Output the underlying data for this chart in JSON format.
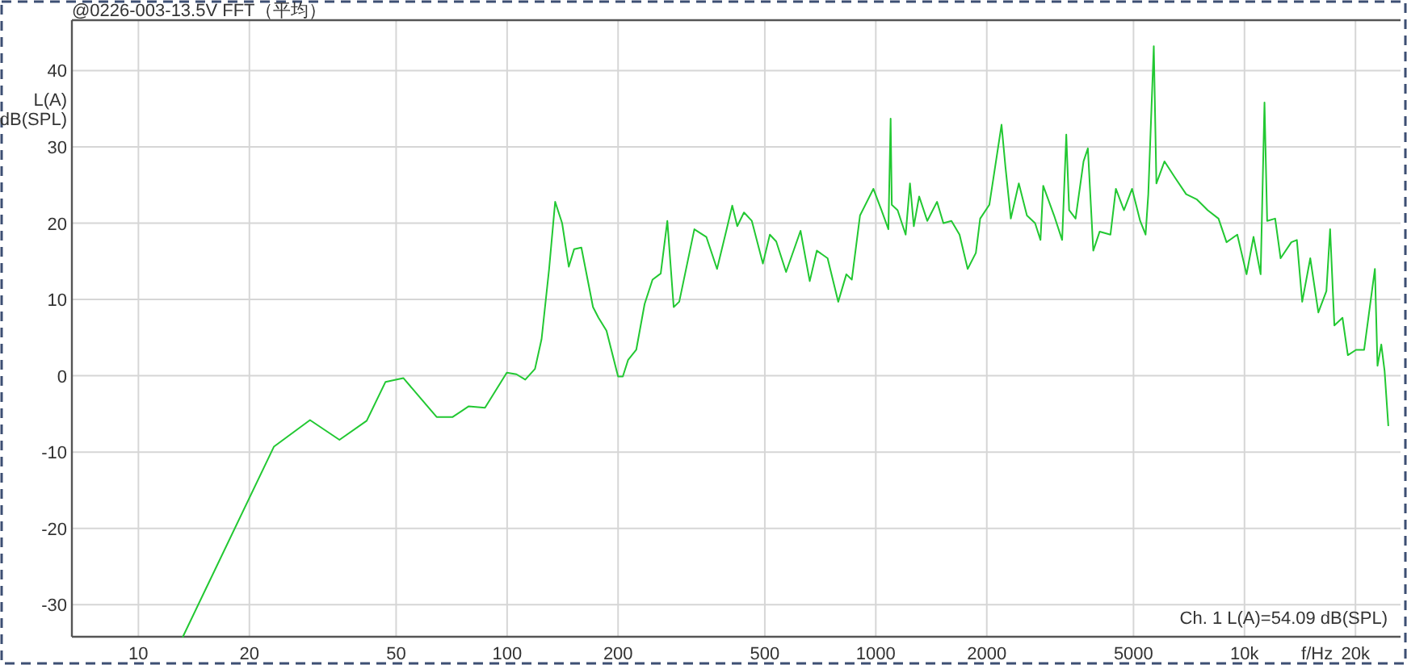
{
  "chart_data": {
    "type": "line",
    "title": "@0226-003-13.5V FFT（平均）",
    "xlabel": "f/Hz",
    "ylabel": "L(A) dB(SPL)",
    "annotations": [
      "Ch. 1 L(A)=54.09 dB(SPL)"
    ],
    "log": "x",
    "grid": true,
    "legend": false,
    "color": "#22c832",
    "xlim": [
      6.6,
      26500
    ],
    "ylim": [
      -34.2,
      46.6
    ],
    "xticks": [
      10,
      20,
      50,
      100,
      200,
      500,
      1000,
      2000,
      5000,
      {
        "value": 10000,
        "label": "10k"
      },
      {
        "value": 20000,
        "label": "20k"
      }
    ],
    "yticks": [
      -30,
      -20,
      -10,
      0,
      10,
      20,
      30,
      40
    ],
    "x": [
      13.2,
      23.3,
      29.2,
      35.1,
      41.6,
      46.8,
      52.3,
      64.4,
      71.2,
      78.7,
      87.1,
      99.8,
      106,
      112,
      119,
      124,
      130,
      135,
      141,
      147,
      152,
      159,
      171,
      177,
      186,
      200,
      206,
      213,
      224,
      236,
      248,
      261,
      272,
      283,
      293,
      322,
      347,
      371,
      394,
      408,
      421,
      439,
      461,
      494,
      516,
      537,
      571,
      625,
      662,
      692,
      740,
      791,
      832,
      861,
      906,
      985,
      1036,
      1082,
      1097,
      1105,
      1146,
      1205,
      1238,
      1268,
      1311,
      1379,
      1466,
      1525,
      1604,
      1687,
      1775,
      1868,
      1919,
      2032,
      2193,
      2247,
      2324,
      2443,
      2570,
      2704,
      2797,
      2845,
      3045,
      3202,
      3286,
      3345,
      3482,
      3660,
      3760,
      3889,
      4048,
      4330,
      4479,
      4711,
      4955,
      5212,
      5392,
      5484,
      5675,
      5768,
      6068,
      6494,
      6947,
      7430,
      7948,
      8502,
      8940,
      9560,
      10130,
      10580,
      11060,
      11330,
      11520,
      12110,
      12530,
      13400,
      13870,
      14340,
      15080,
      15860,
      16680,
      17070,
      17530,
      18440,
      19070,
      20070,
      21110,
      22580,
      22950,
      23500,
      23990,
      24550
    ],
    "values": [
      -34.2,
      -9.3,
      -5.8,
      -8.4,
      -5.9,
      -0.8,
      -0.3,
      -5.4,
      -5.4,
      -4.0,
      -4.2,
      0.4,
      0.2,
      -0.5,
      0.9,
      4.8,
      14.0,
      22.8,
      20.0,
      14.3,
      16.6,
      16.8,
      9.0,
      7.6,
      5.9,
      -0.1,
      -0.1,
      2.1,
      3.4,
      9.4,
      12.6,
      13.4,
      20.3,
      9.0,
      9.7,
      19.2,
      18.2,
      14.0,
      19.2,
      22.3,
      19.6,
      21.4,
      20.3,
      14.7,
      18.5,
      17.6,
      13.6,
      19.0,
      12.4,
      16.4,
      15.4,
      9.7,
      13.3,
      12.6,
      21.0,
      24.5,
      21.7,
      19.2,
      33.7,
      22.4,
      21.7,
      18.5,
      25.2,
      19.6,
      23.5,
      20.3,
      22.8,
      20.0,
      20.3,
      18.5,
      14.0,
      16.1,
      20.6,
      22.4,
      32.9,
      27.4,
      20.6,
      25.2,
      21.0,
      20.0,
      17.8,
      24.9,
      21.0,
      17.8,
      31.6,
      21.7,
      20.6,
      28.1,
      29.8,
      16.4,
      18.9,
      18.5,
      24.5,
      21.7,
      24.5,
      20.3,
      18.5,
      23.8,
      43.2,
      25.2,
      28.1,
      25.9,
      23.8,
      23.1,
      21.7,
      20.6,
      17.5,
      18.5,
      13.3,
      18.2,
      13.3,
      35.8,
      20.3,
      20.6,
      15.4,
      17.5,
      17.8,
      9.7,
      15.4,
      8.3,
      11.1,
      19.2,
      6.6,
      7.6,
      2.7,
      3.4,
      3.4,
      14.0,
      1.3,
      4.1,
      0.6,
      -6.5
    ]
  }
}
